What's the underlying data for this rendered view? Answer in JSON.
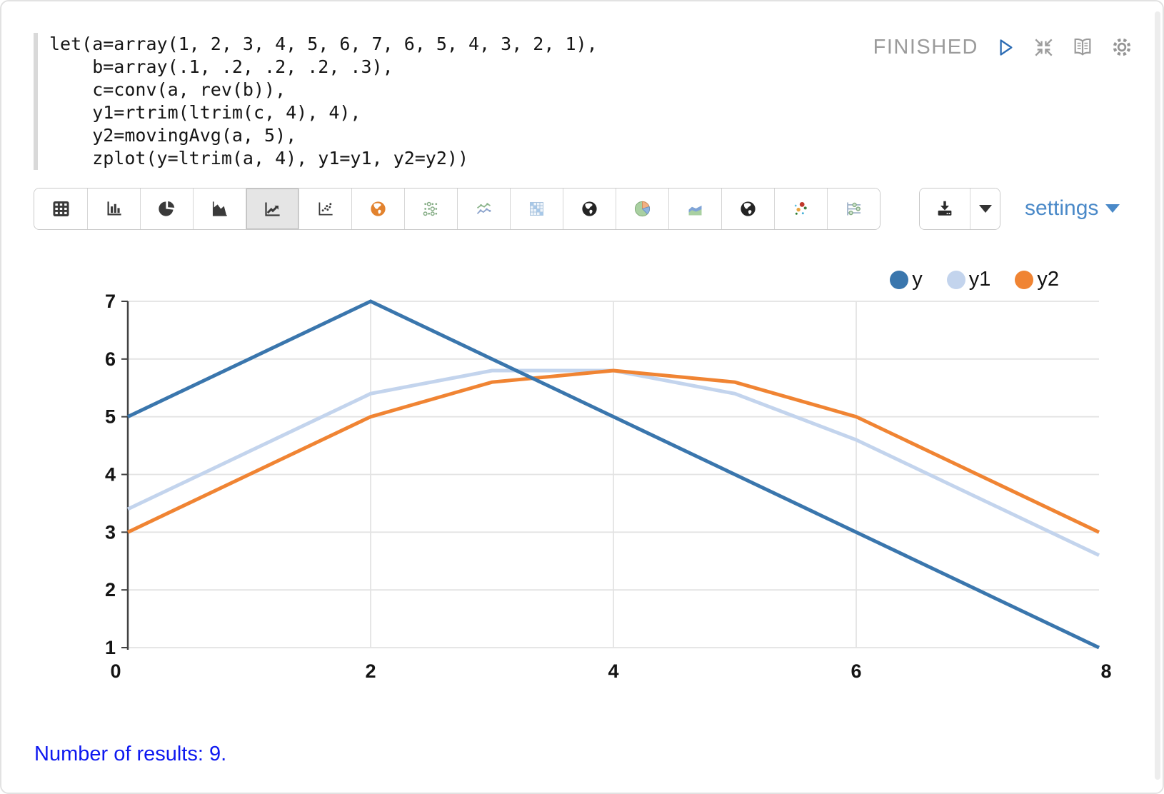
{
  "code": {
    "text": "let(a=array(1, 2, 3, 4, 5, 6, 7, 6, 5, 4, 3, 2, 1),\n    b=array(.1, .2, .2, .2, .3),\n    c=conv(a, rev(b)),\n    y1=rtrim(ltrim(c, 4), 4),\n    y2=movingAvg(a, 5),\n    zplot(y=ltrim(a, 4), y1=y1, y2=y2))"
  },
  "status": {
    "label": "FINISHED"
  },
  "toolbar": {
    "chart_types": [
      {
        "name": "table",
        "selected": false
      },
      {
        "name": "bar-chart",
        "selected": false
      },
      {
        "name": "pie-chart",
        "selected": false
      },
      {
        "name": "area-chart",
        "selected": false
      },
      {
        "name": "line-chart",
        "selected": true
      },
      {
        "name": "scatter-plot",
        "selected": false
      },
      {
        "name": "geo-map-orange",
        "selected": false
      },
      {
        "name": "dot-grid",
        "selected": false
      },
      {
        "name": "multi-series-line",
        "selected": false
      },
      {
        "name": "correlation-matrix",
        "selected": false
      },
      {
        "name": "globe-map",
        "selected": false
      },
      {
        "name": "colored-pie",
        "selected": false
      },
      {
        "name": "stacked-area",
        "selected": false
      },
      {
        "name": "world-map",
        "selected": false
      },
      {
        "name": "bubble-scatter",
        "selected": false
      },
      {
        "name": "timeline-sliders",
        "selected": false
      }
    ],
    "settings_label": "settings"
  },
  "chart_data": {
    "type": "line",
    "x": [
      0,
      1,
      2,
      3,
      4,
      5,
      6,
      7,
      8
    ],
    "series": [
      {
        "name": "y",
        "color": "#3a76ad",
        "values": [
          5,
          6,
          7,
          6,
          5,
          4,
          3,
          2,
          1
        ]
      },
      {
        "name": "y1",
        "color": "#c3d4ed",
        "values": [
          3.4,
          4.4,
          5.4,
          5.8,
          5.8,
          5.4,
          4.6,
          3.6,
          2.6
        ]
      },
      {
        "name": "y2",
        "color": "#f08433",
        "values": [
          3,
          4,
          5,
          5.6,
          5.8,
          5.6,
          5,
          4,
          3
        ]
      }
    ],
    "xticks": [
      0,
      2,
      4,
      6,
      8
    ],
    "yticks": [
      1,
      2,
      3,
      4,
      5,
      6,
      7
    ],
    "xlim": [
      0,
      8
    ],
    "ylim": [
      1,
      7
    ],
    "grid": true,
    "legend_position": "top-right"
  },
  "footer": {
    "text": "Number of results: 9."
  },
  "colors": {
    "accent_blue": "#4a89c8",
    "result_blue": "#0d18f0",
    "status_gray": "#9b9b9b"
  }
}
